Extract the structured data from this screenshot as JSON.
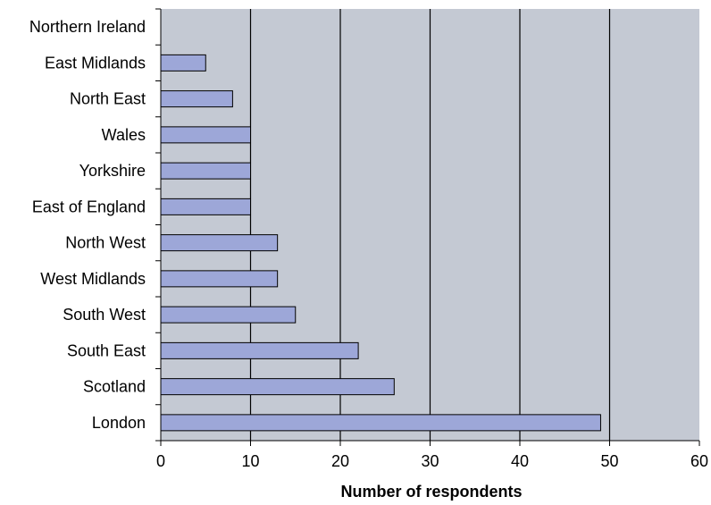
{
  "chart_data": {
    "type": "bar",
    "orientation": "horizontal",
    "categories": [
      "Northern Ireland",
      "East Midlands",
      "North East",
      "Wales",
      "Yorkshire",
      "East of England",
      "North West",
      "West Midlands",
      "South West",
      "South East",
      "Scotland",
      "London"
    ],
    "values": [
      0,
      5,
      8,
      10,
      10,
      10,
      13,
      13,
      15,
      22,
      26,
      49
    ],
    "xlabel": "Number of respondents",
    "ylabel": "",
    "title": "",
    "xlim": [
      0,
      60
    ],
    "xticks": [
      0,
      10,
      20,
      30,
      40,
      50,
      60
    ],
    "xtick_labels": [
      "0",
      "10",
      "20",
      "30",
      "40",
      "50",
      "60"
    ],
    "grid": "vertical",
    "legend": "none",
    "colors": {
      "plot_background": "#c4c9d3",
      "bar_fill": "#9da7d8",
      "bar_stroke": "#000000",
      "gridline": "#000000"
    }
  }
}
